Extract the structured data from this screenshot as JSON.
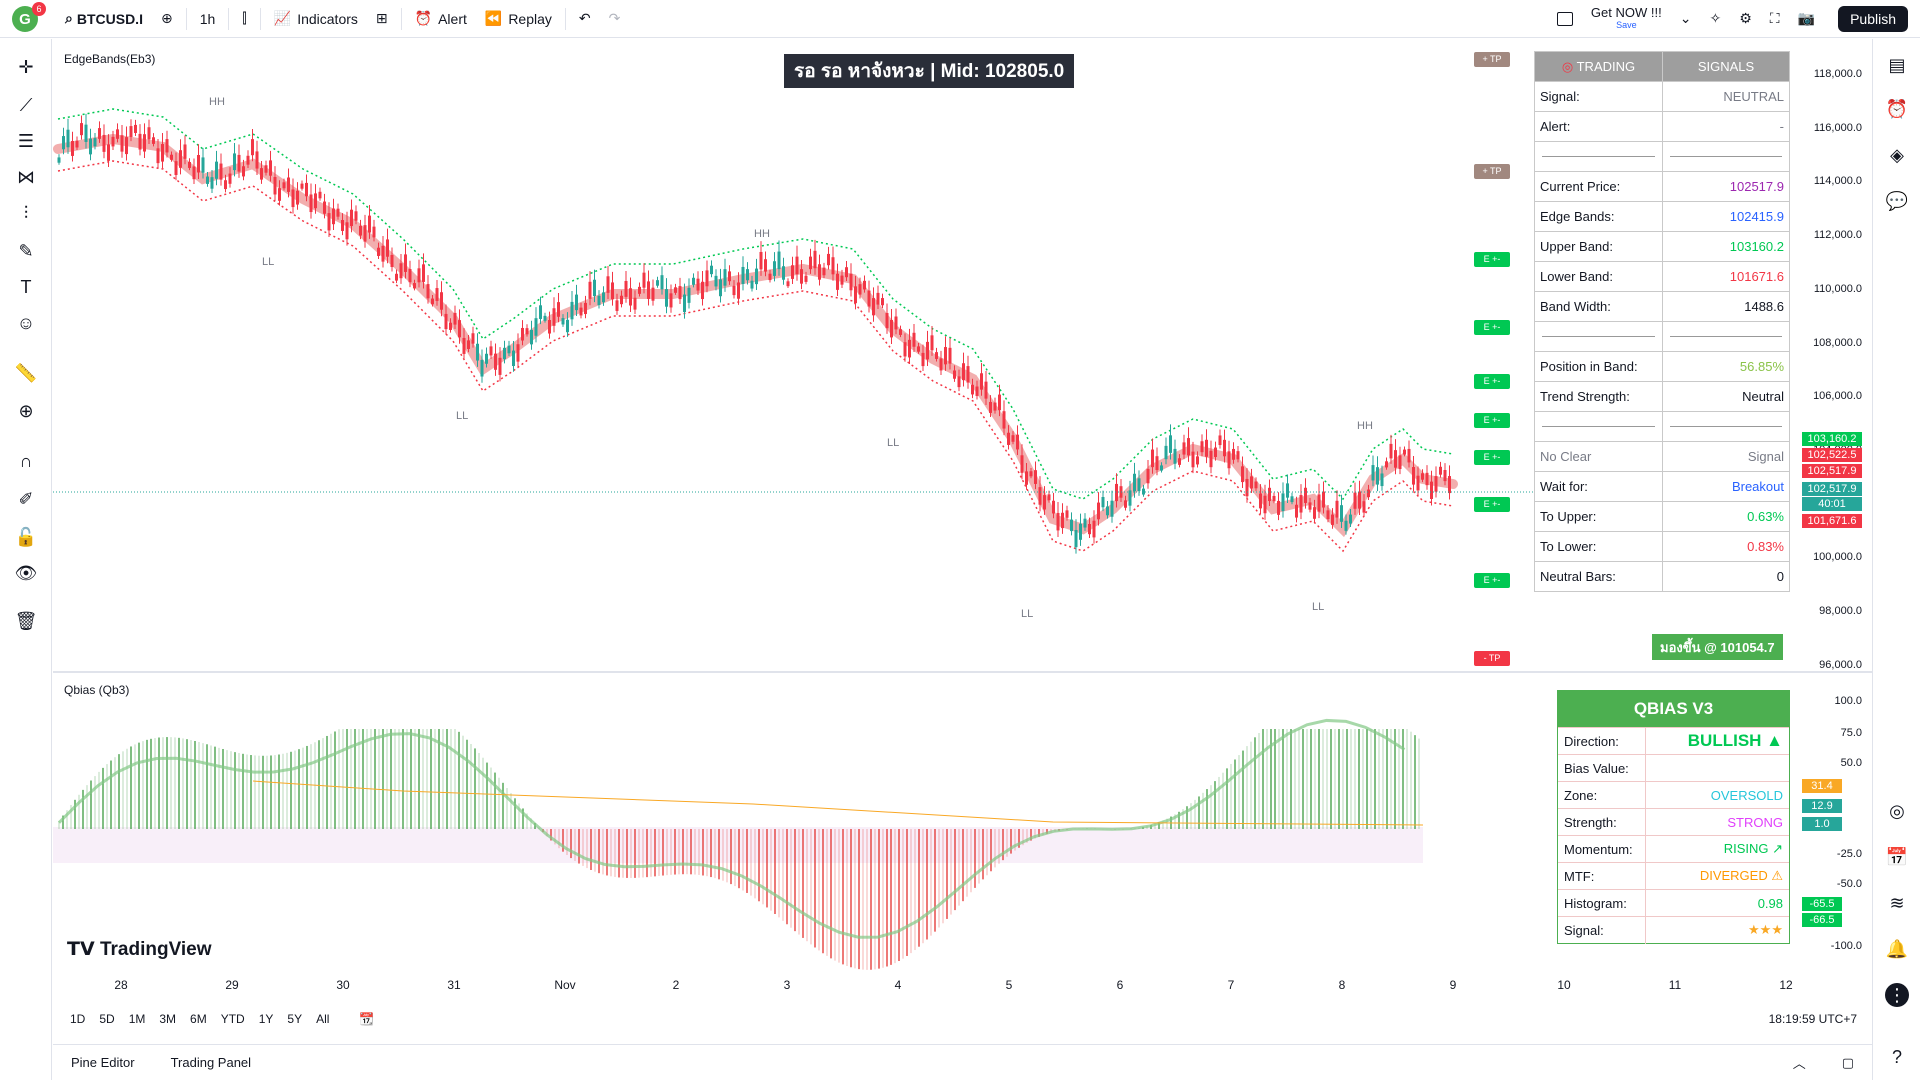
{
  "topbar": {
    "logo_letter": "G",
    "logo_badge": "6",
    "symbol": "BTCUSD.I",
    "interval": "1h",
    "indicators_label": "Indicators",
    "alert_label": "Alert",
    "replay_label": "Replay",
    "promo_title": "Get NOW !!!",
    "promo_sub": "Save",
    "publish_label": "Publish"
  },
  "main_pane": {
    "indicator_label": "EdgeBands(Eb3)",
    "banner_text": "รอ รอ หาจังหวะ | Mid: 102805.0",
    "price_axis": [
      "118,000.0",
      "116,000.0",
      "114,000.0",
      "112,000.0",
      "110,000.0",
      "108,000.0",
      "106,000.0",
      "104,000.0",
      "102,000.0",
      "100,000.0",
      "98,000.0",
      "96,000.0"
    ],
    "price_pills": [
      {
        "text": "103,160.2",
        "color": "#00c853"
      },
      {
        "text": "102,522.5",
        "color": "#f23645"
      },
      {
        "text": "102,517.9",
        "color": "#f23645"
      },
      {
        "text": "102,517.9",
        "color": "#26a69a"
      },
      {
        "text": "40:01",
        "color": "#26a69a"
      },
      {
        "text": "101,671.6",
        "color": "#f23645"
      }
    ],
    "markers": {
      "hh": "HH",
      "ll": "LL",
      "tp_plus": "+ TP",
      "tp_minus": "- TP",
      "e_plus": "E +-"
    },
    "buy_label": "มองขึ้น @ 101054.7"
  },
  "signals_table": {
    "header_left": "TRADING",
    "header_right": "SIGNALS",
    "rows": [
      {
        "k": "Signal:",
        "v": "NEUTRAL",
        "color": "#787b86"
      },
      {
        "k": "Alert:",
        "v": "-",
        "color": "#787b86"
      },
      {
        "k": "",
        "v": "",
        "color": "#131722"
      },
      {
        "k": "Current Price:",
        "v": "102517.9",
        "color": "#9c27b0"
      },
      {
        "k": "Edge Bands:",
        "v": "102415.9",
        "color": "#2962ff"
      },
      {
        "k": "Upper Band:",
        "v": "103160.2",
        "color": "#00c853"
      },
      {
        "k": "Lower Band:",
        "v": "101671.6",
        "color": "#f23645"
      },
      {
        "k": "Band Width:",
        "v": "1488.6",
        "color": "#131722"
      },
      {
        "k": "",
        "v": "",
        "color": "#131722"
      },
      {
        "k": "Position in Band:",
        "v": "56.85%",
        "color": "#8bc34a"
      },
      {
        "k": "Trend Strength:",
        "v": "Neutral",
        "color": "#131722"
      },
      {
        "k": "",
        "v": "",
        "color": "#131722"
      },
      {
        "k": "No Clear",
        "v": "Signal",
        "color": "#787b86"
      },
      {
        "k": "Wait for:",
        "v": "Breakout",
        "color": "#2962ff"
      },
      {
        "k": "To Upper:",
        "v": "0.63%",
        "color": "#00c853"
      },
      {
        "k": "To Lower:",
        "v": "0.83%",
        "color": "#f23645"
      },
      {
        "k": "Neutral Bars:",
        "v": "0",
        "color": "#131722"
      }
    ]
  },
  "qbias_pane": {
    "indicator_label": "Qbias (Qb3)",
    "axis": [
      "100.0",
      "75.0",
      "50.0",
      "-25.0",
      "-50.0",
      "-100.0"
    ],
    "pills": [
      {
        "text": "31.4",
        "color": "#f9a825"
      },
      {
        "text": "12.9",
        "color": "#26a69a"
      },
      {
        "text": "1.0",
        "color": "#26a69a"
      },
      {
        "text": "-65.5",
        "color": "#00c853"
      },
      {
        "text": "-66.5",
        "color": "#00c853"
      }
    ]
  },
  "qbias_table": {
    "title": "QBIAS V3",
    "rows": [
      {
        "k": "Direction:",
        "v": "BULLISH ▲",
        "color": "#00c853"
      },
      {
        "k": "Bias Value:",
        "v": "",
        "color": "#131722"
      },
      {
        "k": "Zone:",
        "v": "OVERSOLD",
        "color": "#26c6da"
      },
      {
        "k": "Strength:",
        "v": "STRONG",
        "color": "#e040fb"
      },
      {
        "k": "Momentum:",
        "v": "RISING ↗",
        "color": "#00c853"
      },
      {
        "k": "MTF:",
        "v": "DIVERGED ⚠",
        "color": "#ff9800"
      },
      {
        "k": "Histogram:",
        "v": "0.98",
        "color": "#00c853"
      },
      {
        "k": "Signal:",
        "v": "★★★",
        "color": "#f9a825"
      }
    ]
  },
  "time_axis": [
    "28",
    "29",
    "30",
    "31",
    "Nov",
    "2",
    "3",
    "4",
    "5",
    "6",
    "7",
    "8",
    "9",
    "10",
    "11",
    "12"
  ],
  "bottom": {
    "ranges": [
      "1D",
      "5D",
      "1M",
      "3M",
      "6M",
      "YTD",
      "1Y",
      "5Y",
      "All"
    ],
    "clock": "18:19:59 UTC+7"
  },
  "footer_tabs": [
    "Pine Editor",
    "Trading Panel"
  ],
  "tv_logo": "TradingView",
  "colors": {
    "up": "#26a69a",
    "down": "#f23645",
    "band_green": "#66bb6a",
    "band_red": "#ef5350"
  }
}
